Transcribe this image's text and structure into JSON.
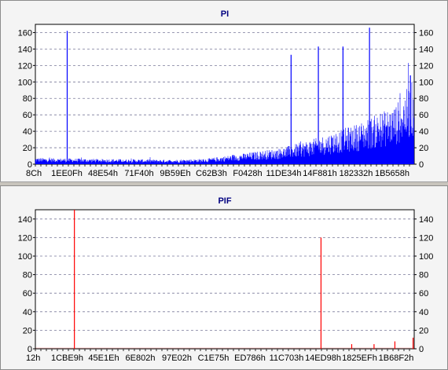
{
  "chart_data": [
    {
      "type": "bar",
      "title": "PI",
      "ylim": [
        0,
        170
      ],
      "yticks": [
        0,
        20,
        40,
        60,
        80,
        100,
        120,
        140,
        160
      ],
      "x_tick_labels": [
        "8Ch",
        "1EE0Fh",
        "48E54h",
        "71F40h",
        "9B59Eh",
        "C62B3h",
        "F0428h",
        "11DE34h",
        "14F881h",
        "182332h",
        "1B5658h"
      ],
      "bar_color": "#0000ff",
      "grid": true,
      "trend_points": [
        [
          0,
          7
        ],
        [
          0.15,
          6
        ],
        [
          0.35,
          5
        ],
        [
          0.45,
          6
        ],
        [
          0.55,
          12
        ],
        [
          0.65,
          18
        ],
        [
          0.75,
          30
        ],
        [
          0.85,
          45
        ],
        [
          0.95,
          65
        ],
        [
          1.0,
          95
        ]
      ],
      "spikes": [
        {
          "x": 0.084,
          "value": 162
        },
        {
          "x": 0.675,
          "value": 133
        },
        {
          "x": 0.747,
          "value": 143
        },
        {
          "x": 0.812,
          "value": 143
        },
        {
          "x": 0.882,
          "value": 166
        },
        {
          "x": 0.99,
          "value": 108
        }
      ]
    },
    {
      "type": "bar",
      "title": "PIF",
      "ylim": [
        0,
        150
      ],
      "yticks": [
        0,
        20,
        40,
        60,
        80,
        100,
        120,
        140
      ],
      "x_tick_labels": [
        "12h",
        "1CBE9h",
        "45E1Eh",
        "6E802h",
        "97E02h",
        "C1E75h",
        "ED786h",
        "11C703h",
        "14ED98h",
        "1825EFh",
        "1B68F2h"
      ],
      "bar_color": "#ff0000",
      "grid": true,
      "spikes": [
        {
          "x": 0.103,
          "value": 155
        },
        {
          "x": 0.754,
          "value": 120
        },
        {
          "x": 0.835,
          "value": 5
        },
        {
          "x": 0.894,
          "value": 5
        },
        {
          "x": 0.949,
          "value": 8
        },
        {
          "x": 0.997,
          "value": 12
        }
      ]
    }
  ]
}
